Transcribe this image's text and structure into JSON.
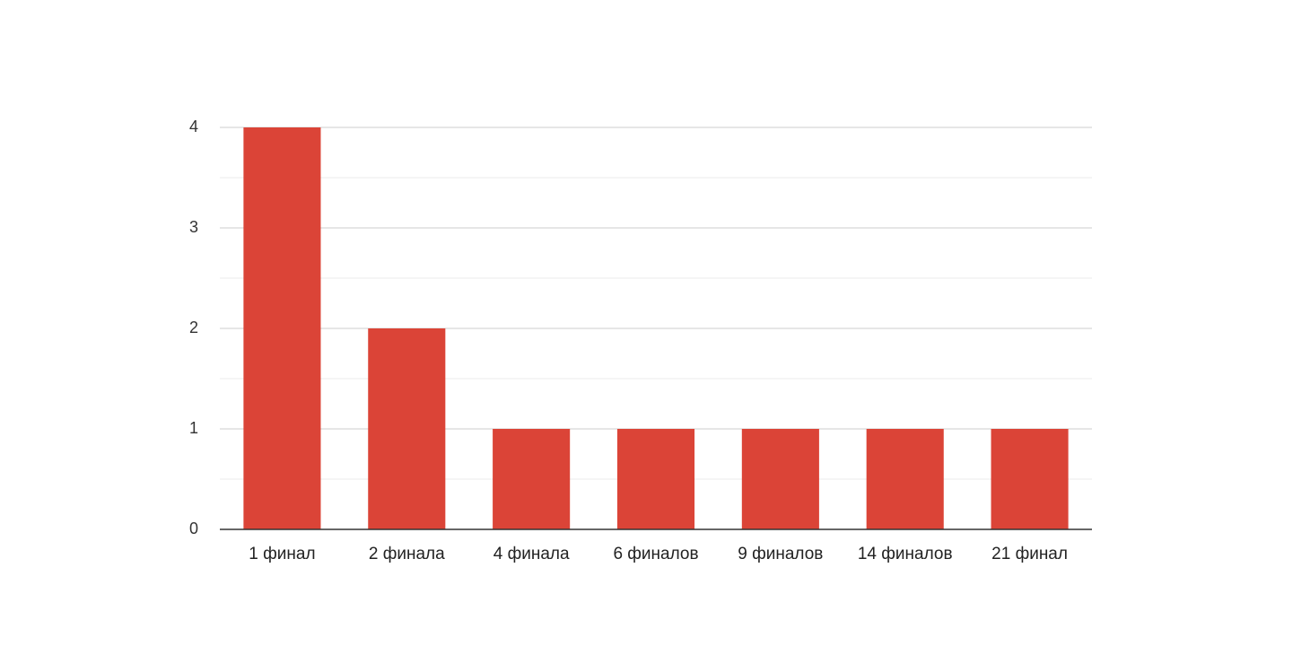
{
  "chart_data": {
    "type": "bar",
    "categories": [
      "1 финал",
      "2 финала",
      "4 финала",
      "6 финалов",
      "9 финалов",
      "14 финалов",
      "21 финал"
    ],
    "values": [
      4,
      2,
      1,
      1,
      1,
      1,
      1
    ],
    "color": "#db4437",
    "ylim": [
      0,
      4
    ],
    "yticks": [
      0,
      1,
      2,
      3,
      4
    ],
    "minor_yticks": [
      0.5,
      1.5,
      2.5,
      3.5
    ],
    "grid": true
  }
}
